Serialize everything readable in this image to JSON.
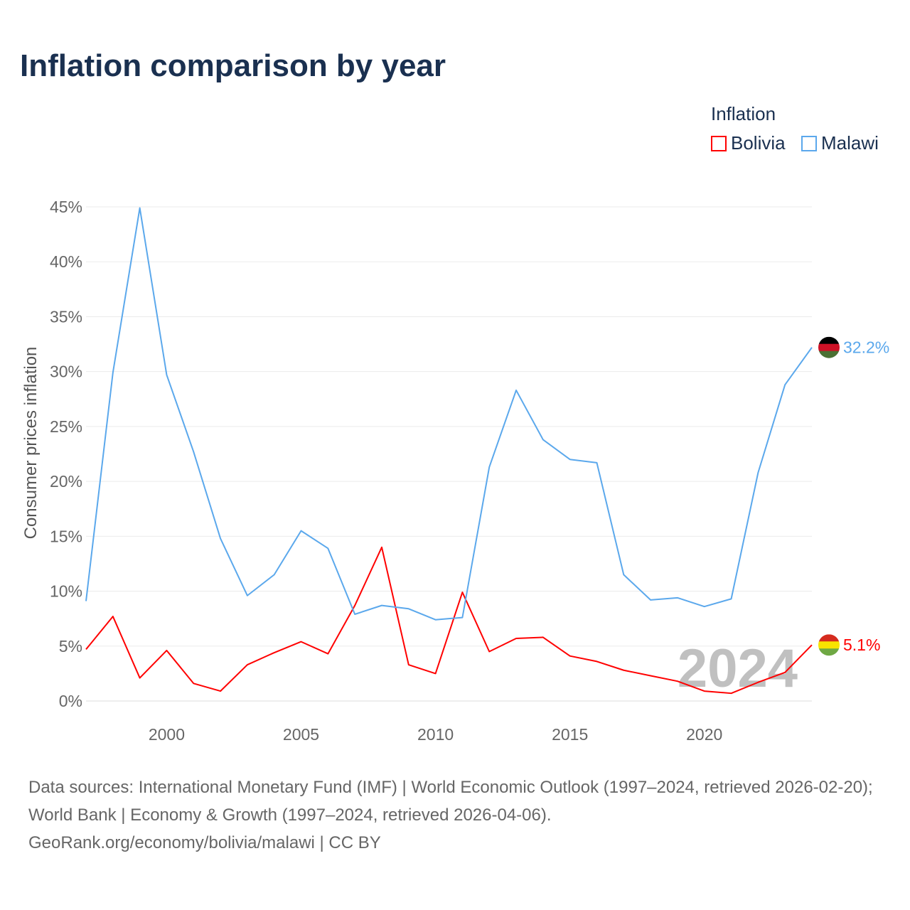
{
  "title": "Inflation comparison by year",
  "legend": {
    "title": "Inflation",
    "items": [
      {
        "name": "Bolivia",
        "color": "#ff0000"
      },
      {
        "name": "Malawi",
        "color": "#5ba8ec"
      }
    ]
  },
  "watermark_year": "2024",
  "source": {
    "line1": "Data sources: International Monetary Fund (IMF) | World Economic Outlook (1997–2024, retrieved 2026-02-20); World Bank | Economy & Growth (1997–2024, retrieved 2026-04-06).",
    "line2": "GeoRank.org/economy/bolivia/malawi | CC BY"
  },
  "chart_data": {
    "type": "line",
    "title": "Inflation comparison by year",
    "xlabel": "",
    "ylabel": "Consumer prices inflation",
    "xlim": [
      1997,
      2024
    ],
    "ylim": [
      0,
      45
    ],
    "yticks": [
      0,
      5,
      10,
      15,
      20,
      25,
      30,
      35,
      40,
      45
    ],
    "ytick_labels": [
      "0%",
      "5%",
      "10%",
      "15%",
      "20%",
      "25%",
      "30%",
      "35%",
      "40%",
      "45%"
    ],
    "xticks": [
      2000,
      2005,
      2010,
      2015,
      2020
    ],
    "xtick_labels": [
      "2000",
      "2005",
      "2010",
      "2015",
      "2020"
    ],
    "grid": true,
    "legend_position": "top-right",
    "x": [
      1997,
      1998,
      1999,
      2000,
      2001,
      2002,
      2003,
      2004,
      2005,
      2006,
      2007,
      2008,
      2009,
      2010,
      2011,
      2012,
      2013,
      2014,
      2015,
      2016,
      2017,
      2018,
      2019,
      2020,
      2021,
      2022,
      2023,
      2024
    ],
    "series": [
      {
        "name": "Bolivia",
        "color": "#ff0000",
        "end_label": "5.1%",
        "values": [
          4.7,
          7.7,
          2.1,
          4.6,
          1.6,
          0.9,
          3.3,
          4.4,
          5.4,
          4.3,
          8.7,
          14.0,
          3.3,
          2.5,
          9.9,
          4.5,
          5.7,
          5.8,
          4.1,
          3.6,
          2.8,
          2.3,
          1.8,
          0.9,
          0.7,
          1.7,
          2.6,
          5.1
        ]
      },
      {
        "name": "Malawi",
        "color": "#5ba8ec",
        "end_label": "32.2%",
        "values": [
          9.1,
          29.9,
          44.9,
          29.7,
          22.7,
          14.8,
          9.6,
          11.5,
          15.5,
          13.9,
          7.9,
          8.7,
          8.4,
          7.4,
          7.6,
          21.3,
          28.3,
          23.8,
          22.0,
          21.7,
          11.5,
          9.2,
          9.4,
          8.6,
          9.3,
          20.8,
          28.8,
          32.2
        ]
      }
    ]
  }
}
